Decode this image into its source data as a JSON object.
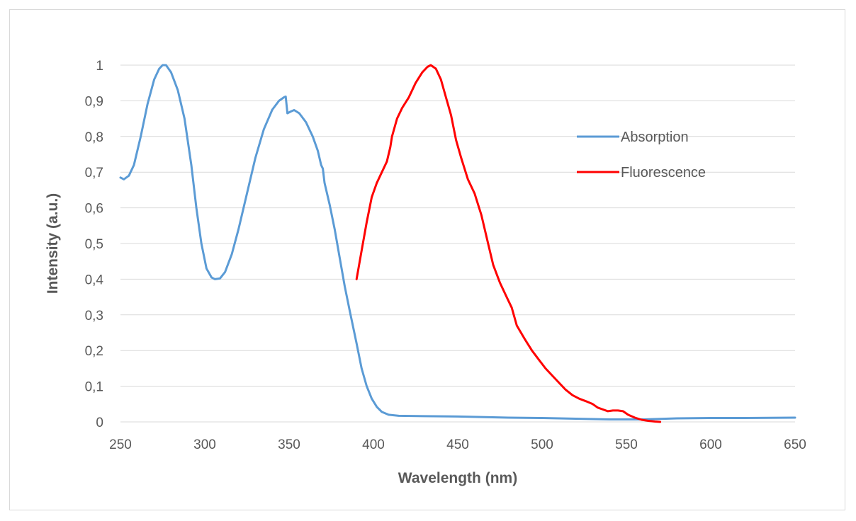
{
  "chart_data": {
    "type": "line",
    "title": "",
    "xlabel": "Wavelength (nm)",
    "ylabel": "Intensity (a.u.)",
    "xlim": [
      250,
      650
    ],
    "ylim": [
      0,
      1
    ],
    "x_ticks": [
      "250",
      "300",
      "350",
      "400",
      "450",
      "500",
      "550",
      "600",
      "650"
    ],
    "y_ticks": [
      "0",
      "0,1",
      "0,2",
      "0,3",
      "0,4",
      "0,5",
      "0,6",
      "0,7",
      "0,8",
      "0,9",
      "1"
    ],
    "grid": "horizontal",
    "legend_position": "right",
    "series": [
      {
        "name": "Absorption",
        "color": "#5b9bd5",
        "points": [
          [
            250,
            0.685
          ],
          [
            252,
            0.68
          ],
          [
            255,
            0.69
          ],
          [
            258,
            0.72
          ],
          [
            262,
            0.8
          ],
          [
            266,
            0.89
          ],
          [
            270,
            0.96
          ],
          [
            273,
            0.99
          ],
          [
            275,
            1.0
          ],
          [
            277,
            1.0
          ],
          [
            280,
            0.98
          ],
          [
            284,
            0.93
          ],
          [
            288,
            0.85
          ],
          [
            292,
            0.72
          ],
          [
            295,
            0.6
          ],
          [
            298,
            0.5
          ],
          [
            301,
            0.43
          ],
          [
            304,
            0.405
          ],
          [
            306,
            0.4
          ],
          [
            309,
            0.402
          ],
          [
            312,
            0.42
          ],
          [
            316,
            0.47
          ],
          [
            320,
            0.54
          ],
          [
            325,
            0.64
          ],
          [
            330,
            0.74
          ],
          [
            335,
            0.82
          ],
          [
            340,
            0.875
          ],
          [
            344,
            0.9
          ],
          [
            347,
            0.91
          ],
          [
            348,
            0.912
          ],
          [
            349,
            0.865
          ],
          [
            351,
            0.87
          ],
          [
            353,
            0.874
          ],
          [
            356,
            0.865
          ],
          [
            360,
            0.84
          ],
          [
            364,
            0.8
          ],
          [
            367,
            0.76
          ],
          [
            369,
            0.72
          ],
          [
            370,
            0.71
          ],
          [
            371,
            0.67
          ],
          [
            374,
            0.61
          ],
          [
            377,
            0.54
          ],
          [
            380,
            0.46
          ],
          [
            383,
            0.38
          ],
          [
            386,
            0.31
          ],
          [
            390,
            0.22
          ],
          [
            393,
            0.15
          ],
          [
            396,
            0.1
          ],
          [
            399,
            0.065
          ],
          [
            402,
            0.042
          ],
          [
            405,
            0.028
          ],
          [
            409,
            0.02
          ],
          [
            415,
            0.017
          ],
          [
            430,
            0.016
          ],
          [
            450,
            0.015
          ],
          [
            480,
            0.012
          ],
          [
            500,
            0.011
          ],
          [
            520,
            0.009
          ],
          [
            540,
            0.007
          ],
          [
            560,
            0.007
          ],
          [
            580,
            0.01
          ],
          [
            600,
            0.011
          ],
          [
            620,
            0.011
          ],
          [
            650,
            0.012
          ]
        ]
      },
      {
        "name": "Fluorescence",
        "color": "#ff0000",
        "points": [
          [
            390,
            0.4
          ],
          [
            393,
            0.48
          ],
          [
            396,
            0.56
          ],
          [
            399,
            0.63
          ],
          [
            402,
            0.67
          ],
          [
            405,
            0.7
          ],
          [
            408,
            0.73
          ],
          [
            410,
            0.77
          ],
          [
            411,
            0.8
          ],
          [
            414,
            0.85
          ],
          [
            417,
            0.88
          ],
          [
            421,
            0.91
          ],
          [
            425,
            0.95
          ],
          [
            429,
            0.98
          ],
          [
            432,
            0.995
          ],
          [
            434,
            1.0
          ],
          [
            437,
            0.99
          ],
          [
            440,
            0.96
          ],
          [
            443,
            0.91
          ],
          [
            446,
            0.86
          ],
          [
            449,
            0.79
          ],
          [
            452,
            0.74
          ],
          [
            456,
            0.68
          ],
          [
            460,
            0.64
          ],
          [
            464,
            0.58
          ],
          [
            468,
            0.5
          ],
          [
            471,
            0.44
          ],
          [
            475,
            0.39
          ],
          [
            479,
            0.35
          ],
          [
            482,
            0.32
          ],
          [
            485,
            0.27
          ],
          [
            490,
            0.23
          ],
          [
            494,
            0.2
          ],
          [
            498,
            0.175
          ],
          [
            502,
            0.15
          ],
          [
            506,
            0.13
          ],
          [
            510,
            0.11
          ],
          [
            514,
            0.09
          ],
          [
            518,
            0.075
          ],
          [
            522,
            0.065
          ],
          [
            526,
            0.058
          ],
          [
            530,
            0.05
          ],
          [
            533,
            0.04
          ],
          [
            536,
            0.035
          ],
          [
            539,
            0.03
          ],
          [
            542,
            0.032
          ],
          [
            545,
            0.032
          ],
          [
            548,
            0.03
          ],
          [
            551,
            0.02
          ],
          [
            555,
            0.012
          ],
          [
            559,
            0.006
          ],
          [
            563,
            0.003
          ],
          [
            567,
            0.001
          ],
          [
            570,
            0.0
          ]
        ]
      }
    ]
  }
}
